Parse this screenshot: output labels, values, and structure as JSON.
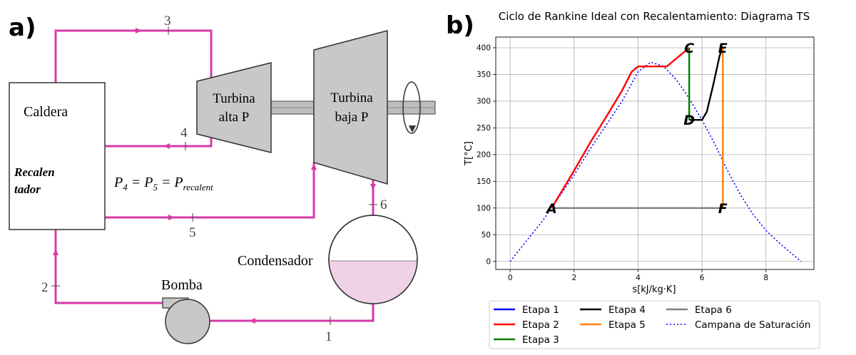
{
  "panel_a": {
    "label": "a)",
    "boiler": "Caldera",
    "reheater_line1": "Recalen",
    "reheater_line2": "tador",
    "turbine_hp_line1": "Turbina",
    "turbine_hp_line2": "alta P",
    "turbine_lp_line1": "Turbina",
    "turbine_lp_line2": "baja P",
    "condenser": "Condensador",
    "pump": "Bomba",
    "equation_main": "P",
    "equation_parts": [
      "4",
      " = P",
      "5",
      " = P",
      "recalent"
    ],
    "state_numbers": [
      "1",
      "2",
      "3",
      "4",
      "5",
      "6"
    ],
    "colors": {
      "pipe": "#d63aa8",
      "equipment": "#c8c8c8",
      "condensate": "#f0d2e6"
    }
  },
  "panel_b": {
    "label": "b)",
    "title": "Ciclo de Rankine Ideal con Recalentamiento: Diagrama TS",
    "xlabel": "s[kJ/kg·K]",
    "ylabel": "T[°C]",
    "point_labels": [
      "A",
      "C",
      "D",
      "E",
      "F"
    ],
    "legend": [
      {
        "label": "Etapa 1",
        "color": "#0000ff",
        "style": "solid"
      },
      {
        "label": "Etapa 2",
        "color": "#ff0000",
        "style": "solid"
      },
      {
        "label": "Etapa 3",
        "color": "#008000",
        "style": "solid"
      },
      {
        "label": "Etapa 4",
        "color": "#000000",
        "style": "solid"
      },
      {
        "label": "Etapa 5",
        "color": "#ff7f0e",
        "style": "solid"
      },
      {
        "label": "Etapa 6",
        "color": "#808080",
        "style": "solid"
      },
      {
        "label": "Campana de Saturación",
        "color": "#0000ff",
        "style": "dotted"
      }
    ]
  },
  "chart_data": {
    "type": "line",
    "title": "Ciclo de Rankine Ideal con Recalentamiento: Diagrama TS",
    "xlabel": "s[kJ/kg·K]",
    "ylabel": "T[°C]",
    "xlim": [
      -0.45,
      9.5
    ],
    "ylim": [
      -15,
      420
    ],
    "xticks": [
      0,
      2,
      4,
      6,
      8
    ],
    "yticks": [
      0,
      50,
      100,
      150,
      200,
      250,
      300,
      350,
      400
    ],
    "grid": true,
    "legend_position": "below",
    "series": [
      {
        "name": "Etapa 1",
        "color": "#0000ff",
        "x": [
          1.3,
          1.31
        ],
        "y": [
          100,
          102
        ]
      },
      {
        "name": "Etapa 2",
        "color": "#ff0000",
        "x": [
          1.3,
          1.6,
          2.0,
          2.5,
          3.0,
          3.5,
          3.8,
          4.0,
          4.4,
          4.9,
          5.6
        ],
        "y": [
          100,
          130,
          170,
          222,
          270,
          320,
          355,
          365,
          365,
          365,
          400
        ]
      },
      {
        "name": "Etapa 3",
        "color": "#008000",
        "x": [
          5.6,
          5.6
        ],
        "y": [
          400,
          265
        ]
      },
      {
        "name": "Etapa 4",
        "color": "#000000",
        "x": [
          5.6,
          6.0,
          6.15,
          6.35,
          6.55,
          6.65
        ],
        "y": [
          265,
          265,
          280,
          330,
          385,
          400
        ]
      },
      {
        "name": "Etapa 5",
        "color": "#ff7f0e",
        "x": [
          6.65,
          6.65
        ],
        "y": [
          400,
          100
        ]
      },
      {
        "name": "Etapa 6",
        "color": "#808080",
        "x": [
          6.65,
          1.3
        ],
        "y": [
          100,
          100
        ]
      },
      {
        "name": "Campana de Saturación",
        "color": "#0000ff",
        "style": "dotted",
        "x": [
          0.0,
          0.5,
          1.0,
          1.5,
          2.0,
          2.5,
          3.0,
          3.5,
          4.0,
          4.4,
          4.8,
          5.2,
          5.6,
          6.0,
          6.4,
          6.8,
          7.2,
          7.6,
          8.0,
          8.5,
          9.1
        ],
        "y": [
          0,
          38,
          75,
          118,
          162,
          210,
          255,
          300,
          355,
          373,
          365,
          340,
          305,
          265,
          220,
          170,
          125,
          88,
          58,
          30,
          0
        ]
      }
    ],
    "points": [
      {
        "label": "A",
        "x": 1.3,
        "y": 100
      },
      {
        "label": "C",
        "x": 5.6,
        "y": 400
      },
      {
        "label": "D",
        "x": 5.6,
        "y": 265
      },
      {
        "label": "E",
        "x": 6.65,
        "y": 400
      },
      {
        "label": "F",
        "x": 6.65,
        "y": 100
      }
    ]
  }
}
